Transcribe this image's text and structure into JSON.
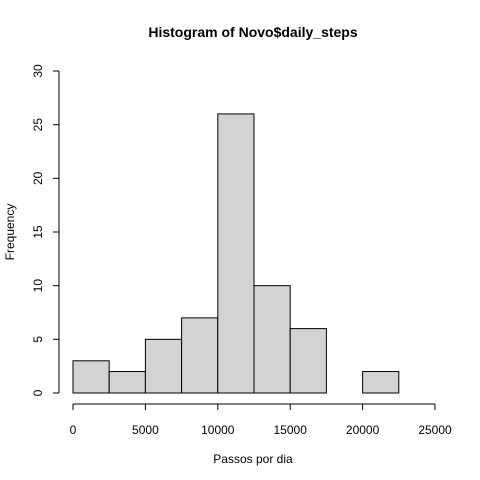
{
  "chart_data": {
    "type": "bar",
    "title": "Histogram of Novo$daily_steps",
    "xlabel": "Passos por dia",
    "ylabel": "Frequency",
    "bins": [
      {
        "start": 0,
        "end": 2500,
        "count": 3
      },
      {
        "start": 2500,
        "end": 5000,
        "count": 2
      },
      {
        "start": 5000,
        "end": 7500,
        "count": 5
      },
      {
        "start": 7500,
        "end": 10000,
        "count": 7
      },
      {
        "start": 10000,
        "end": 12500,
        "count": 26
      },
      {
        "start": 12500,
        "end": 15000,
        "count": 10
      },
      {
        "start": 15000,
        "end": 17500,
        "count": 6
      },
      {
        "start": 17500,
        "end": 20000,
        "count": 0
      },
      {
        "start": 20000,
        "end": 22500,
        "count": 2
      },
      {
        "start": 22500,
        "end": 25000,
        "count": 0
      }
    ],
    "xlim": [
      0,
      25000
    ],
    "ylim": [
      0,
      30
    ],
    "xticks": [
      "0",
      "5000",
      "10000",
      "15000",
      "20000",
      "25000"
    ],
    "yticks": [
      "0",
      "5",
      "10",
      "15",
      "20",
      "25",
      "30"
    ],
    "grid": false,
    "legend": "none"
  }
}
